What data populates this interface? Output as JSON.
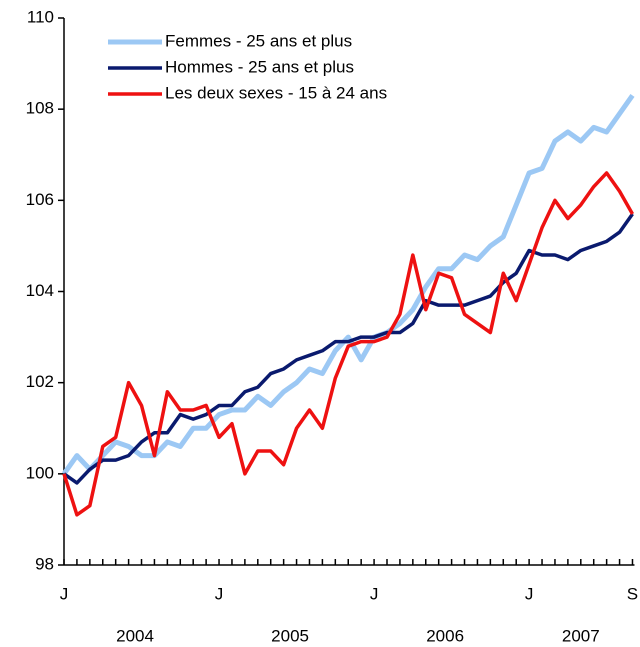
{
  "chart_data": {
    "type": "line",
    "categories": [
      "J",
      null,
      null,
      null,
      null,
      null,
      null,
      null,
      null,
      null,
      null,
      null,
      "J",
      null,
      null,
      null,
      null,
      null,
      null,
      null,
      null,
      null,
      null,
      null,
      "J",
      null,
      null,
      null,
      null,
      null,
      null,
      null,
      null,
      null,
      null,
      null,
      "J",
      null,
      null,
      null,
      null,
      null,
      null,
      null,
      "S"
    ],
    "x_group_labels": [
      "2004",
      "2005",
      "2006",
      "2007"
    ],
    "ylim": [
      98,
      110
    ],
    "yticks": [
      98,
      100,
      102,
      104,
      106,
      108,
      110
    ],
    "legend": "top-left",
    "series": [
      {
        "name": "Femmes - 25 ans et plus",
        "color": "#9cc8f4",
        "values": [
          100.0,
          100.4,
          100.1,
          100.4,
          100.7,
          100.6,
          100.4,
          100.4,
          100.7,
          100.6,
          101.0,
          101.0,
          101.3,
          101.4,
          101.4,
          101.7,
          101.5,
          101.8,
          102.0,
          102.3,
          102.2,
          102.7,
          103.0,
          102.5,
          103.0,
          103.1,
          103.3,
          103.6,
          104.1,
          104.5,
          104.5,
          104.8,
          104.7,
          105.0,
          105.2,
          105.9,
          106.6,
          106.7,
          107.3,
          107.5,
          107.3,
          107.6,
          107.5,
          107.9,
          108.3
        ]
      },
      {
        "name": "Hommes - 25 ans et plus",
        "color": "#0a1a6e",
        "values": [
          100.0,
          99.8,
          100.1,
          100.3,
          100.3,
          100.4,
          100.7,
          100.9,
          100.9,
          101.3,
          101.2,
          101.3,
          101.5,
          101.5,
          101.8,
          101.9,
          102.2,
          102.3,
          102.5,
          102.6,
          102.7,
          102.9,
          102.9,
          103.0,
          103.0,
          103.1,
          103.1,
          103.3,
          103.8,
          103.7,
          103.7,
          103.7,
          103.8,
          103.9,
          104.2,
          104.4,
          104.9,
          104.8,
          104.8,
          104.7,
          104.9,
          105.0,
          105.1,
          105.3,
          105.7
        ]
      },
      {
        "name": "Les deux sexes - 15 à 24 ans",
        "color": "#ee1111",
        "values": [
          100.0,
          99.1,
          99.3,
          100.6,
          100.8,
          102.0,
          101.5,
          100.4,
          101.8,
          101.4,
          101.4,
          101.5,
          100.8,
          101.1,
          100.0,
          100.5,
          100.5,
          100.2,
          101.0,
          101.4,
          101.0,
          102.1,
          102.8,
          102.9,
          102.9,
          103.0,
          103.5,
          104.8,
          103.6,
          104.4,
          104.3,
          103.5,
          103.3,
          103.1,
          104.4,
          103.8,
          104.6,
          105.4,
          106.0,
          105.6,
          105.9,
          106.3,
          106.6,
          106.2,
          105.7
        ]
      }
    ]
  }
}
